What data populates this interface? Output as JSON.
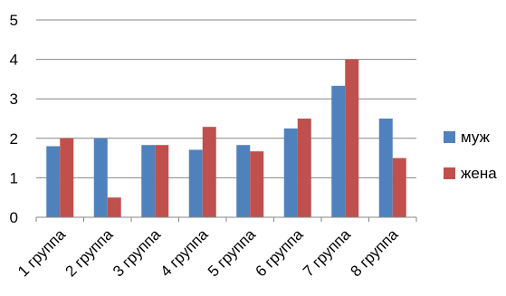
{
  "chart_data": {
    "type": "bar",
    "categories": [
      "1 группа",
      "2 группа",
      "3 группа",
      "4 группа",
      "5 группа",
      "6 группа",
      "7 группа",
      "8 группа"
    ],
    "series": [
      {
        "name": "муж",
        "values": [
          1.8,
          2.0,
          1.83,
          1.71,
          1.83,
          2.25,
          3.33,
          2.5
        ],
        "color": "#4f81bd"
      },
      {
        "name": "жена",
        "values": [
          2.0,
          0.5,
          1.83,
          2.29,
          1.67,
          2.5,
          4.0,
          1.5
        ],
        "color": "#c0504d"
      }
    ],
    "ylim": [
      0,
      5
    ],
    "yticks": [
      "0",
      "1",
      "2",
      "3",
      "4",
      "5"
    ],
    "grid": true,
    "legend_position": "right"
  }
}
